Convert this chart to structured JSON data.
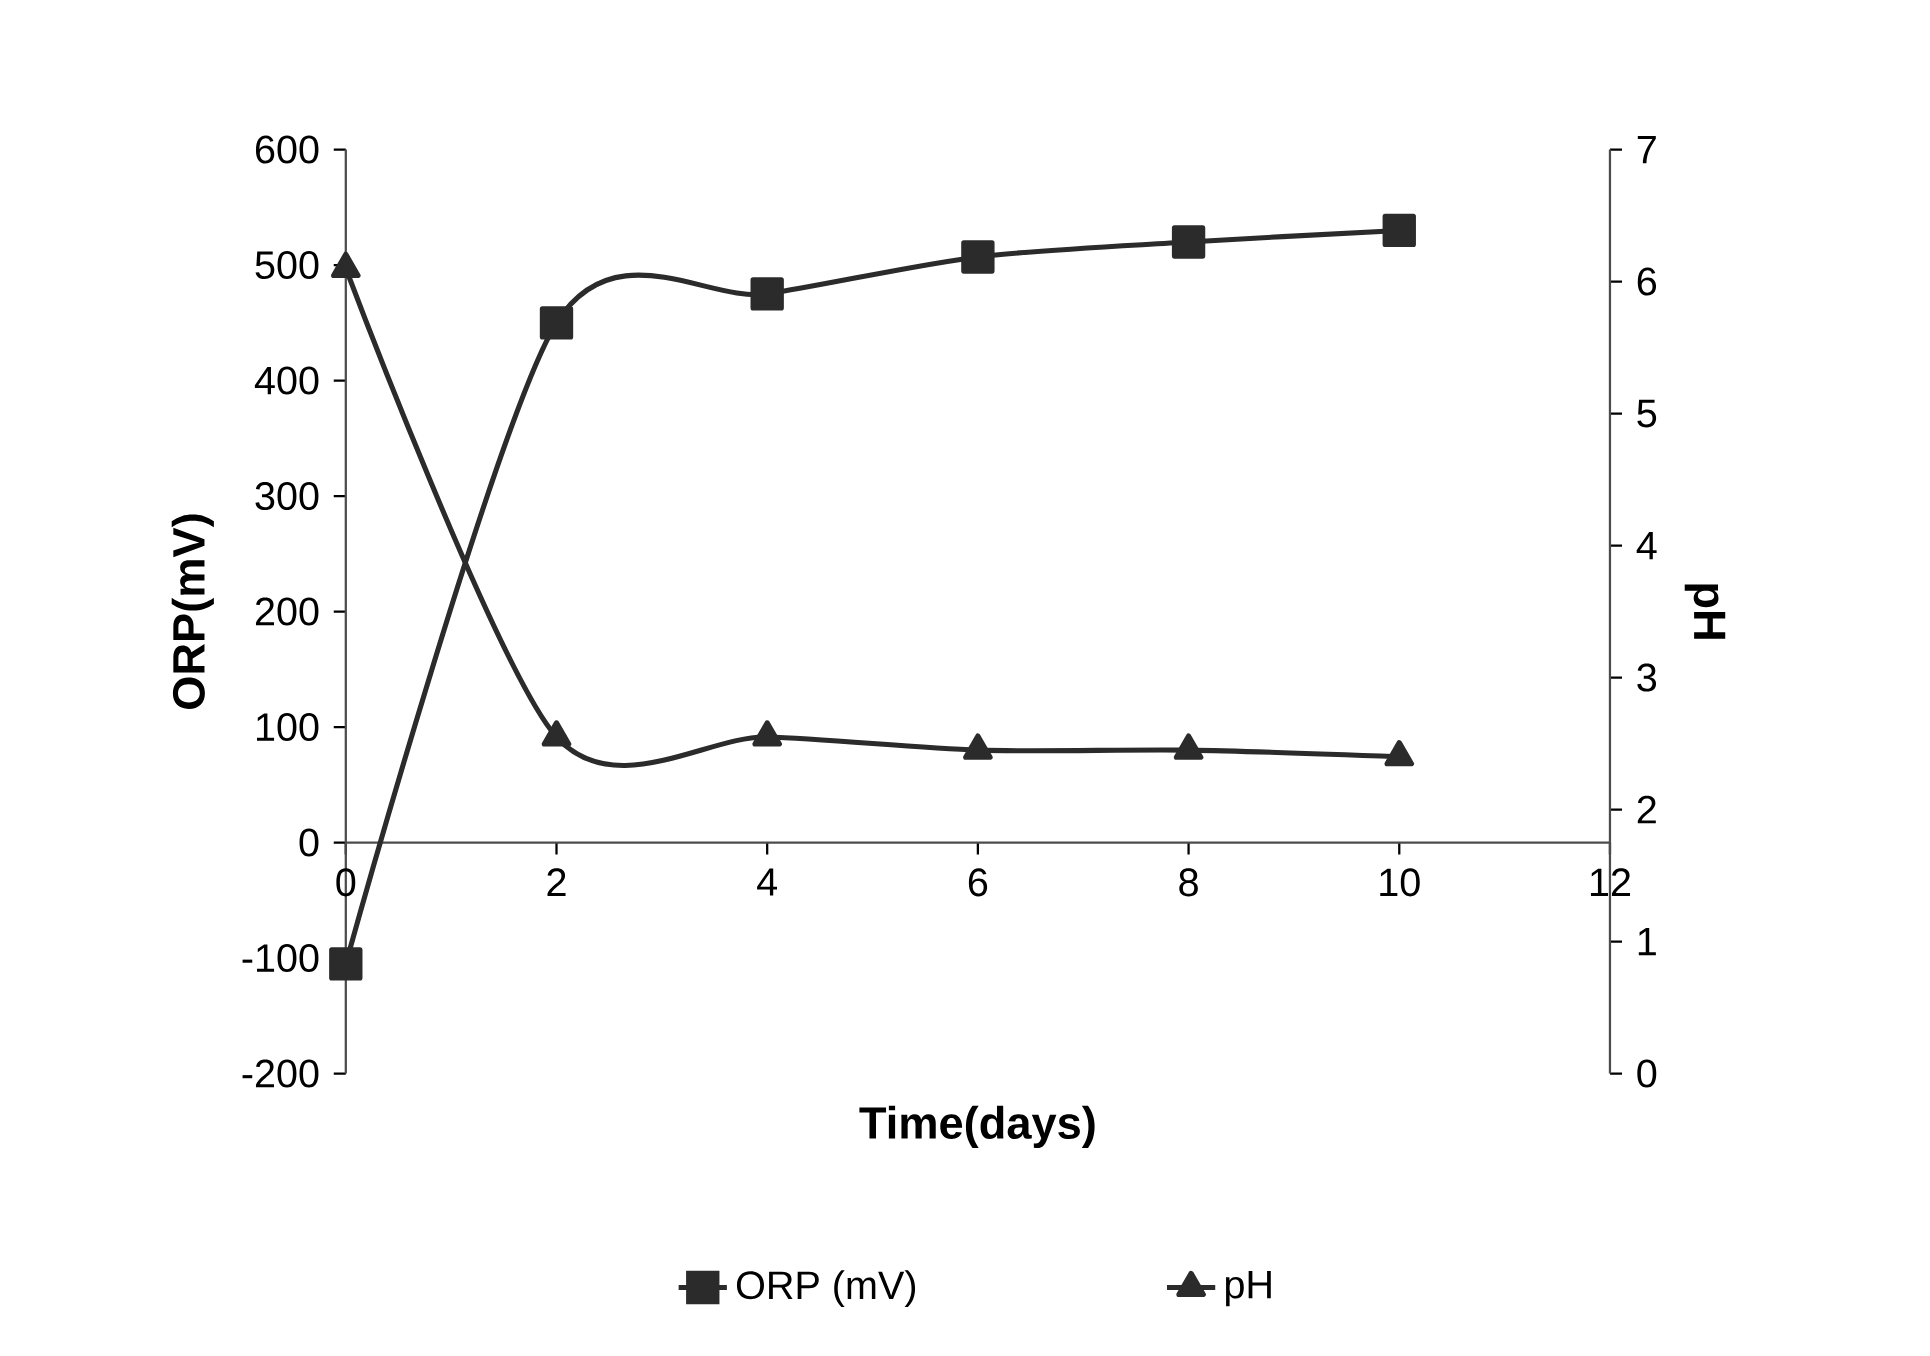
{
  "chart_data": {
    "type": "line",
    "xlabel": "Time(days)",
    "ylabel": "ORP(mV)",
    "y2label": "pH",
    "x": [
      0,
      2,
      4,
      6,
      8,
      10
    ],
    "series": [
      {
        "name": "ORP (mV)",
        "color": "#2b2b2b",
        "marker": "square",
        "values": [
          -105,
          450,
          475,
          507,
          520,
          530
        ]
      },
      {
        "name": "pH",
        "color": "#2b2b2b",
        "marker": "triangle",
        "axis": "y2",
        "values": [
          6.1,
          2.55,
          2.55,
          2.45,
          2.45,
          2.4
        ]
      }
    ],
    "xlim": [
      0,
      12
    ],
    "xticks": [
      0,
      2,
      4,
      6,
      8,
      10,
      12
    ],
    "ylim": [
      -200,
      600
    ],
    "yticks": [
      -200,
      -100,
      0,
      100,
      200,
      300,
      400,
      500,
      600
    ],
    "y2lim": [
      0,
      7
    ],
    "y2ticks": [
      0,
      1,
      2,
      3,
      4,
      5,
      6,
      7
    ],
    "legend": "bottom"
  }
}
